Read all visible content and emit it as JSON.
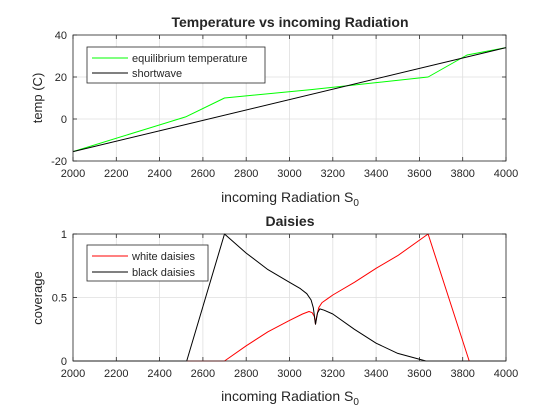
{
  "colors": {
    "green": "#00ff00",
    "black": "#000000",
    "red": "#ff0000",
    "grid": "#dfdfdf",
    "axis": "#262626"
  },
  "chart_data": [
    {
      "type": "line",
      "title": "Temperature vs incoming Radiation",
      "xlabel": "incoming Radiation S",
      "xlabel_sub": "0",
      "ylabel": "temp (C)",
      "xlim": [
        2000,
        4000
      ],
      "ylim": [
        -20,
        40
      ],
      "xticks": [
        2000,
        2200,
        2400,
        2600,
        2800,
        3000,
        3200,
        3400,
        3600,
        3800,
        4000
      ],
      "yticks": [
        -20,
        0,
        20,
        40
      ],
      "grid": true,
      "legend": "top-left",
      "series": [
        {
          "name": "equilibrium temperature",
          "color": "#00ff00",
          "x": [
            2000,
            2520,
            2700,
            3100,
            3640,
            3820,
            4000
          ],
          "y": [
            -15.5,
            1,
            10,
            14,
            20,
            30.5,
            34
          ]
        },
        {
          "name": "shortwave",
          "color": "#000000",
          "x": [
            2000,
            4000
          ],
          "y": [
            -15.5,
            34
          ]
        }
      ]
    },
    {
      "type": "line",
      "title": "Daisies",
      "xlabel": "incoming Radiation S",
      "xlabel_sub": "0",
      "ylabel": "coverage",
      "xlim": [
        2000,
        4000
      ],
      "ylim": [
        0,
        1
      ],
      "xticks": [
        2000,
        2200,
        2400,
        2600,
        2800,
        3000,
        3200,
        3400,
        3600,
        3800,
        4000
      ],
      "yticks": [
        0,
        0.5,
        1
      ],
      "grid": true,
      "legend": "top-left",
      "series": [
        {
          "name": "white daisies",
          "color": "#ff0000",
          "x": [
            2000,
            2700,
            2800,
            2900,
            3000,
            3060,
            3090,
            3105,
            3115,
            3120,
            3125,
            3135,
            3150,
            3175,
            3200,
            3300,
            3400,
            3500,
            3640,
            3830,
            4000
          ],
          "y": [
            0,
            0,
            0.12,
            0.23,
            0.32,
            0.37,
            0.39,
            0.38,
            0.35,
            0.29,
            0.35,
            0.42,
            0.46,
            0.49,
            0.52,
            0.62,
            0.73,
            0.83,
            1.0,
            0,
            0
          ]
        },
        {
          "name": "black daisies",
          "color": "#000000",
          "x": [
            2000,
            2525,
            2700,
            2800,
            2900,
            3000,
            3050,
            3080,
            3100,
            3110,
            3120,
            3130,
            3140,
            3160,
            3200,
            3300,
            3400,
            3500,
            3630,
            4000
          ],
          "y": [
            0,
            0,
            1.0,
            0.85,
            0.72,
            0.62,
            0.57,
            0.53,
            0.48,
            0.42,
            0.29,
            0.38,
            0.41,
            0.4,
            0.37,
            0.25,
            0.14,
            0.06,
            0,
            0
          ]
        }
      ]
    }
  ]
}
